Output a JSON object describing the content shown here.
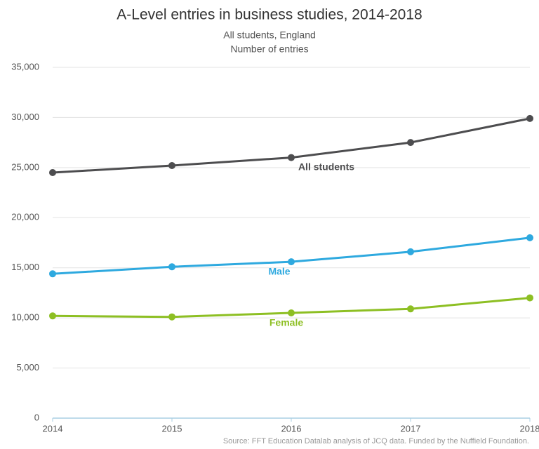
{
  "chart_data": {
    "type": "line",
    "title": "A-Level entries in business studies, 2014-2018",
    "subtitle": "All students, England",
    "y_label": "Number of entries",
    "source": "Source: FFT Education Datalab analysis of JCQ data. Funded by the Nuffield Foundation.",
    "x": [
      2014,
      2015,
      2016,
      2017,
      2018
    ],
    "xlim": [
      2014,
      2018
    ],
    "xticks": [
      2014,
      2015,
      2016,
      2017,
      2018
    ],
    "ylim": [
      0,
      35000
    ],
    "yticks": [
      0,
      {
        "value": 5000,
        "label": "5,000"
      },
      {
        "value": 10000,
        "label": "10,000"
      },
      {
        "value": 15000,
        "label": "15,000"
      },
      {
        "value": 20000,
        "label": "20,000"
      },
      {
        "value": 25000,
        "label": "25,000"
      },
      {
        "value": 30000,
        "label": "30,000"
      },
      {
        "value": 35000,
        "label": "35,000"
      }
    ],
    "grid": true,
    "series": [
      {
        "name": "All students",
        "color": "#4d4d4f",
        "values": [
          24500,
          25200,
          26000,
          27500,
          29900
        ]
      },
      {
        "name": "Male",
        "color": "#2ea9df",
        "values": [
          14400,
          15100,
          15600,
          16600,
          18000
        ]
      },
      {
        "name": "Female",
        "color": "#8dbf23",
        "values": [
          10200,
          10100,
          10500,
          10900,
          12000
        ]
      }
    ]
  }
}
